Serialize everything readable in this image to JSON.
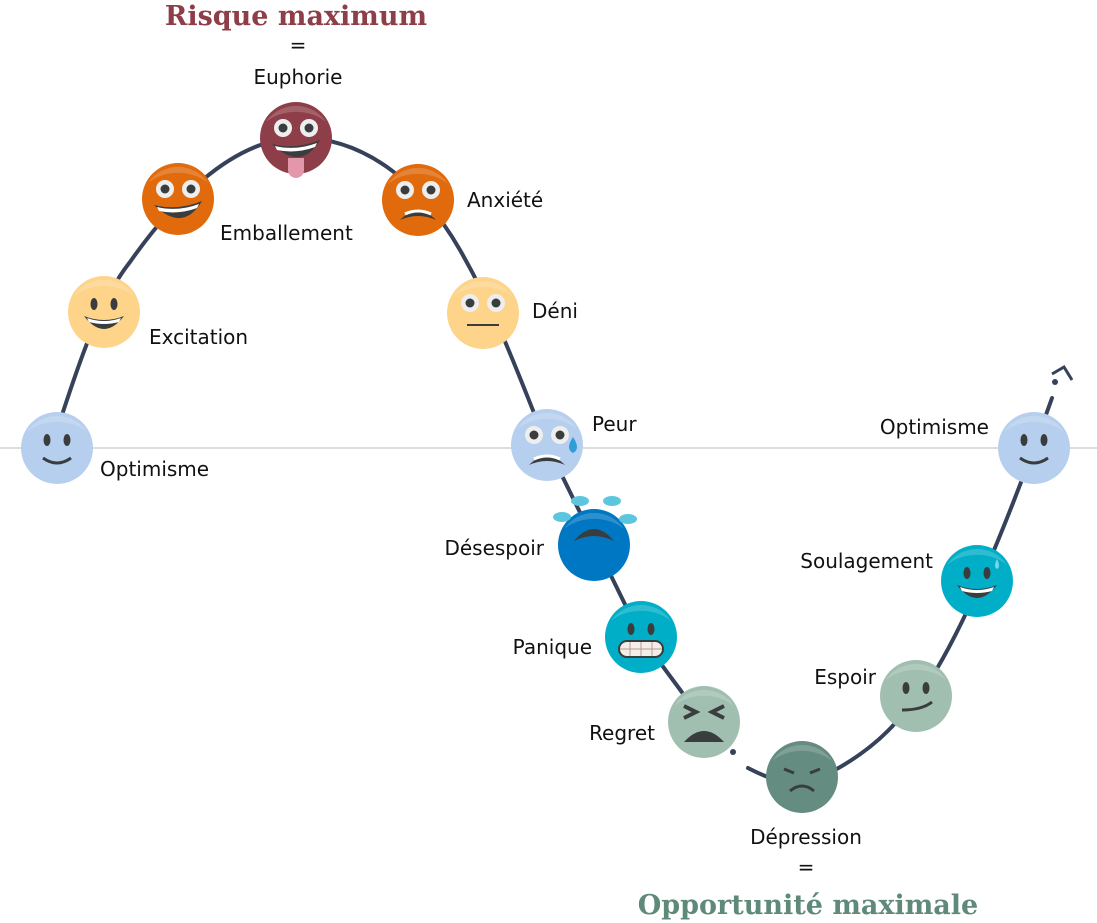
{
  "top": {
    "title": "Risque maximum",
    "equals": "=",
    "color": "#8e3e48"
  },
  "bottom": {
    "title": "Opportunité maximale",
    "equals": "=",
    "color": "#5f8a7a"
  },
  "curve_color": "#36415a",
  "baseline_color": "#dddddd",
  "stages": [
    {
      "label": "Optimisme",
      "color": "#b7cfee",
      "expression": "smile"
    },
    {
      "label": "Excitation",
      "color": "#fdd48a",
      "expression": "grin"
    },
    {
      "label": "Emballement",
      "color": "#e06a0c",
      "expression": "big-grin"
    },
    {
      "label": "Euphorie",
      "color": "#8e3e48",
      "expression": "tongue"
    },
    {
      "label": "Anxiété",
      "color": "#e06a0c",
      "expression": "grimace"
    },
    {
      "label": "Déni",
      "color": "#fdd48a",
      "expression": "neutral"
    },
    {
      "label": "Peur",
      "color": "#b7cfee",
      "expression": "fearful-sweat"
    },
    {
      "label": "Désespoir",
      "color": "#0077c2",
      "expression": "crying"
    },
    {
      "label": "Panique",
      "color": "#00aec7",
      "expression": "teeth"
    },
    {
      "label": "Regret",
      "color": "#a0bfb0",
      "expression": "tired"
    },
    {
      "label": "Dépression",
      "color": "#648c80",
      "expression": "sad"
    },
    {
      "label": "Espoir",
      "color": "#a0bfb0",
      "expression": "smirk"
    },
    {
      "label": "Soulagement",
      "color": "#00aec7",
      "expression": "relieved"
    },
    {
      "label": "Optimisme",
      "color": "#b7cfee",
      "expression": "smile"
    }
  ]
}
